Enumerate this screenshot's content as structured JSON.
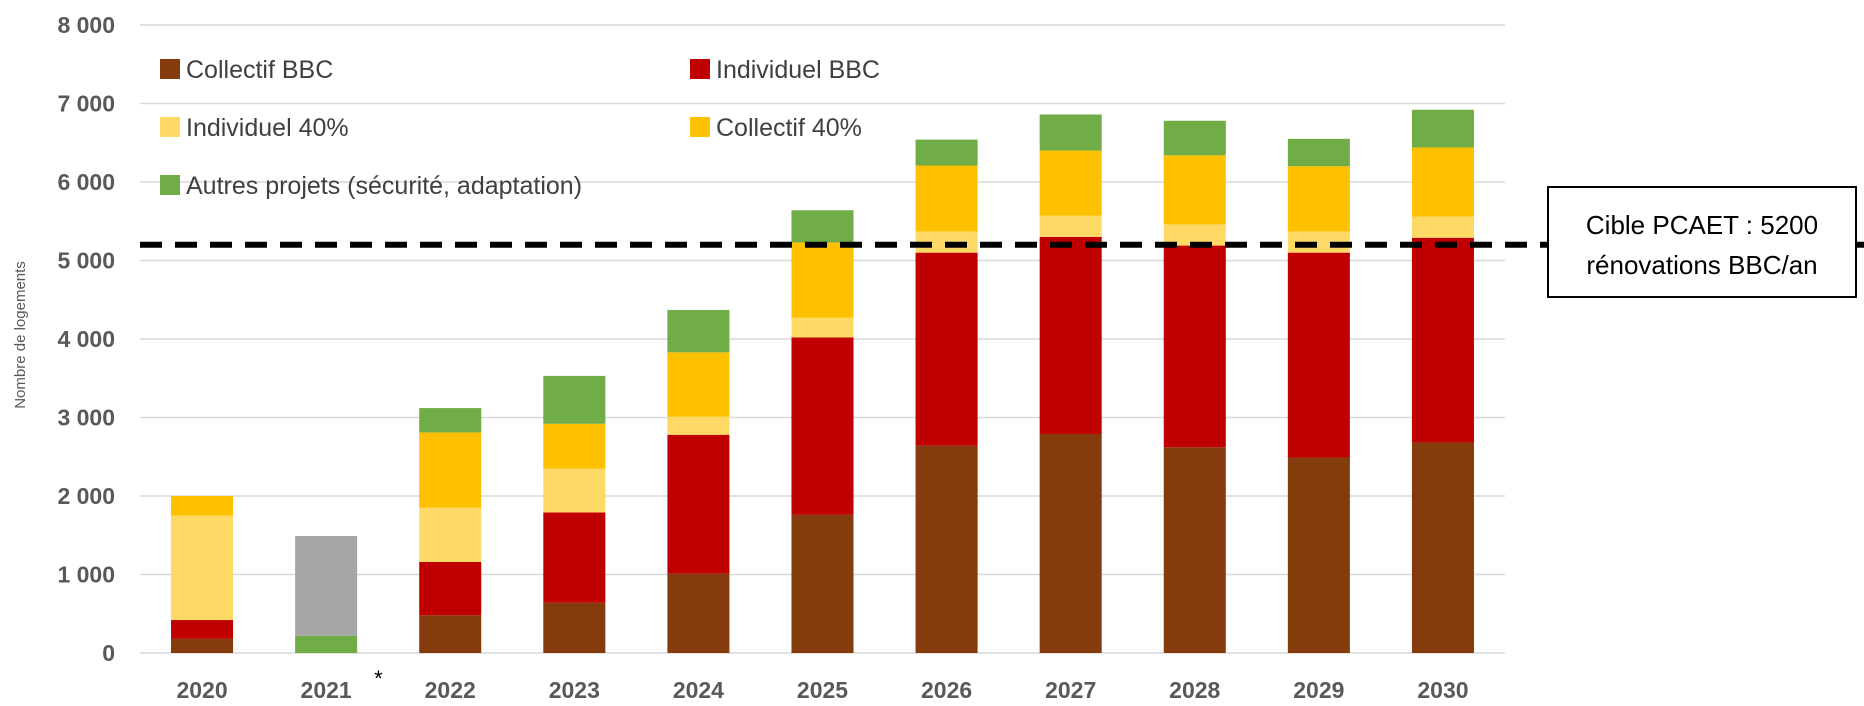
{
  "chart_data": {
    "type": "bar",
    "stacked": true,
    "ylabel": "Nombre de logements",
    "ylim": [
      0,
      8000
    ],
    "yticks": [
      0,
      1000,
      2000,
      3000,
      4000,
      5000,
      6000,
      7000,
      8000
    ],
    "ytick_labels": [
      "0",
      "1 000",
      "2 000",
      "3 000",
      "4 000",
      "5 000",
      "6 000",
      "7 000",
      "8 000"
    ],
    "categories": [
      "2020",
      "2021",
      "2022",
      "2023",
      "2024",
      "2025",
      "2026",
      "2027",
      "2028",
      "2029",
      "2030"
    ],
    "category_notes": {
      "2021": "*"
    },
    "grid": true,
    "legend_position": "top-left",
    "series": [
      {
        "name": "Collectif BBC",
        "color": "#843C0C",
        "values": [
          180,
          0,
          480,
          640,
          1010,
          1760,
          2640,
          2790,
          2620,
          2490,
          2680
        ]
      },
      {
        "name": "Individuel BBC",
        "color": "#C00000",
        "values": [
          240,
          0,
          680,
          1150,
          1770,
          2260,
          2460,
          2510,
          2570,
          2610,
          2610
        ]
      },
      {
        "name": "Individuel 40%",
        "color": "#FFD966",
        "values": [
          1330,
          0,
          690,
          560,
          230,
          250,
          270,
          270,
          270,
          270,
          270
        ]
      },
      {
        "name": "Collectif 40%",
        "color": "#FFC000",
        "values": [
          250,
          0,
          960,
          570,
          820,
          960,
          840,
          830,
          880,
          830,
          880
        ]
      },
      {
        "name": "Autres projets  (sécurité, adaptation)",
        "color": "#70AD47",
        "values": [
          0,
          220,
          310,
          610,
          540,
          410,
          330,
          460,
          440,
          350,
          480
        ]
      },
      {
        "name": "",
        "color": "#A6A6A6",
        "values": [
          0,
          1270,
          0,
          0,
          0,
          0,
          0,
          0,
          0,
          0,
          0
        ]
      }
    ],
    "target_line": {
      "value": 5200,
      "label_line1": "Cible PCAET : 5200",
      "label_line2": "rénovations BBC/an"
    }
  }
}
